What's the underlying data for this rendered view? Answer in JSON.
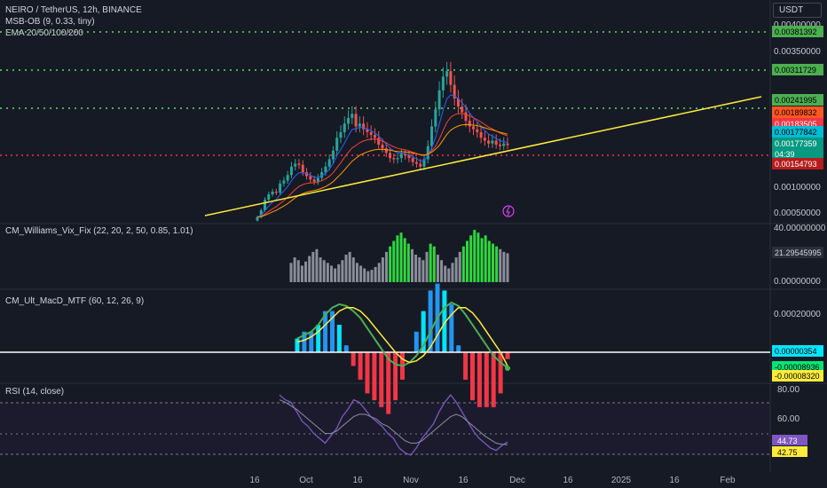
{
  "header": {
    "symbol": "NEIRO / TetherUS, 12h, BINANCE",
    "indicator1": "MSB-OB (9, 0.33, tiny)",
    "indicator2": "EMA 20/50/100/200",
    "currency": "USDT"
  },
  "colors": {
    "background": "#161a25",
    "green_dots": "#4caf50",
    "red_dots": "#f23645",
    "trendline": "#ffeb3b",
    "up_candle": "#26a69a",
    "down_candle": "#ef5350",
    "rsi_line": "#7e57c2",
    "macd_line_up": "#4caf50",
    "macd_line_down": "#f23645",
    "signal_line": "#ffeb3b"
  },
  "price_axis": {
    "ticks": [
      "0.00400000",
      "0.00350000",
      "0.00100000",
      "0.00050000"
    ],
    "badges": [
      {
        "text": "0.00381392",
        "bg": "#4caf50",
        "fg": "#000000"
      },
      {
        "text": "0.00311729",
        "bg": "#4caf50",
        "fg": "#000000"
      },
      {
        "text": "0.00241995",
        "bg": "#4caf50",
        "fg": "#000000"
      },
      {
        "text": "0.00189832",
        "bg": "#ff5722",
        "fg": "#000000"
      },
      {
        "text": "0.00183505",
        "bg": "#f23645",
        "fg": "#ffffff"
      },
      {
        "text": "0.00177842",
        "bg": "#00bcd4",
        "fg": "#000000"
      },
      {
        "text": "0.00177359",
        "bg": "#089981",
        "fg": "#ffffff"
      },
      {
        "text": "04:39",
        "bg": "#089981",
        "fg": "#ffffff"
      },
      {
        "text": "0.00154793",
        "bg": "#b71c1c",
        "fg": "#ffffff"
      }
    ],
    "levels": [
      0.00381392,
      0.00311729,
      0.00241995,
      0.00154793
    ]
  },
  "x_axis": {
    "labels": [
      "16",
      "Oct",
      "16",
      "Nov",
      "16",
      "Dec",
      "16",
      "2025",
      "16",
      "Feb"
    ]
  },
  "panes": {
    "vix": {
      "title": "CM_Williams_Vix_Fix (22, 20, 2, 50, 0.85, 1.01)",
      "ticks": [
        "40.00000000",
        "0.00000000"
      ],
      "badge": "21.29545995"
    },
    "macd": {
      "title": "CM_Ult_MacD_MTF (60, 12, 26, 9)",
      "ticks": [
        "0.00020000"
      ],
      "badges": [
        {
          "text": "0.00000354",
          "bg": "#00e5ff",
          "fg": "#000000"
        },
        {
          "text": "-0.00008936",
          "bg": "#00e676",
          "fg": "#000000"
        },
        {
          "text": "-0.00008320",
          "bg": "#ffeb3b",
          "fg": "#000000"
        }
      ]
    },
    "rsi": {
      "title": "RSI (14, close)",
      "ticks": [
        "80.00",
        "60.00"
      ],
      "badges": [
        {
          "text": "44.73",
          "bg": "#7e57c2",
          "fg": "#ffffff"
        },
        {
          "text": "42.75",
          "bg": "#ffeb3b",
          "fg": "#000000"
        }
      ]
    }
  },
  "chart_data": [
    {
      "type": "candlestick",
      "title": "NEIRO / TetherUS, 12h, BINANCE",
      "x_range": [
        "2024-09-16",
        "2024-11-27"
      ],
      "close": [
        0.00042,
        0.00055,
        0.00075,
        0.00085,
        0.0009,
        0.00088,
        0.00105,
        0.0011,
        0.0012,
        0.00135,
        0.0014,
        0.00138,
        0.00125,
        0.00118,
        0.00112,
        0.00108,
        0.00115,
        0.00125,
        0.00135,
        0.00148,
        0.00165,
        0.0019,
        0.002,
        0.00215,
        0.00225,
        0.00232,
        0.0021,
        0.00215,
        0.00205,
        0.002,
        0.00195,
        0.0019,
        0.00178,
        0.0017,
        0.0016,
        0.0015,
        0.00148,
        0.0015,
        0.00158,
        0.00155,
        0.0015,
        0.00143,
        0.0014,
        0.00135,
        0.00148,
        0.00175,
        0.0021,
        0.0024,
        0.00275,
        0.003,
        0.0031,
        0.00285,
        0.0026,
        0.00245,
        0.00235,
        0.0022,
        0.0021,
        0.00205,
        0.002,
        0.0019,
        0.00185,
        0.0018,
        0.00185,
        0.00178,
        0.00175,
        0.0018,
        0.00177
      ],
      "trendline": {
        "start": [
          "2024-09-16",
          0.0004
        ],
        "end": [
          "2025-02-05",
          0.0027
        ]
      },
      "horizontal_levels": [
        0.00381392,
        0.00311729,
        0.00241995,
        0.00154793
      ]
    },
    {
      "type": "bar",
      "title": "CM_Williams_Vix_Fix (22, 20, 2, 50, 0.85, 1.01)",
      "ylim": [
        0,
        40
      ],
      "values": [
        14,
        18,
        16,
        12,
        15,
        19,
        22,
        24,
        18,
        16,
        14,
        12,
        10,
        13,
        16,
        20,
        22,
        18,
        14,
        12,
        10,
        8,
        9,
        11,
        14,
        18,
        22,
        26,
        30,
        34,
        36,
        32,
        28,
        24,
        20,
        18,
        16,
        22,
        28,
        26,
        20,
        16,
        12,
        10,
        14,
        18,
        22,
        26,
        30,
        34,
        38,
        36,
        32,
        34,
        30,
        28,
        26,
        24,
        22,
        21
      ]
    },
    {
      "type": "line",
      "title": "CM_Ult_MacD_MTF (60, 12, 26, 9)",
      "series": [
        {
          "values": [
            8e-05,
            0.0001,
            0.00012,
            0.00016,
            0.00022,
            0.00026,
            0.00028,
            0.00027,
            0.00024,
            0.0002,
            0.00014,
            8e-05,
            2e-05,
            -4e-05,
            -7e-05,
            -8e-05,
            -6e-05,
            -2e-05,
            4e-05,
            0.00012,
            0.0002,
            0.00026,
            0.00029,
            0.00027,
            0.00022,
            0.00016,
            0.0001,
            4e-05,
            -2e-05,
            -6e-05,
            -9e-05
          ]
        },
        {
          "values": [
            6e-05,
            7e-05,
            9e-05,
            0.00012,
            0.00016,
            0.0002,
            0.00024,
            0.00026,
            0.00026,
            0.00024,
            0.0002,
            0.00015,
            0.0001,
            5e-05,
            0.0,
            -4e-05,
            -6e-05,
            -5e-05,
            -2e-05,
            3e-05,
            0.0001,
            0.00017,
            0.00022,
            0.00026,
            0.00026,
            0.00023,
            0.00018,
            0.00012,
            6e-05,
            0.0,
            -8e-05
          ]
        }
      ]
    },
    {
      "type": "line",
      "title": "RSI (14, close)",
      "ylim": [
        20,
        90
      ],
      "series": [
        {
          "values": [
            84,
            80,
            78,
            70,
            62,
            58,
            52,
            48,
            44,
            50,
            56,
            66,
            72,
            80,
            78,
            72,
            66,
            62,
            58,
            52,
            48,
            40,
            36,
            34,
            40,
            48,
            54,
            60,
            70,
            78,
            84,
            78,
            70,
            62,
            54,
            48,
            44,
            40,
            38,
            42,
            45
          ]
        },
        {
          "values": [
            80,
            78,
            75,
            72,
            68,
            64,
            60,
            56,
            52,
            52,
            54,
            58,
            62,
            66,
            68,
            68,
            66,
            64,
            60,
            58,
            54,
            50,
            46,
            44,
            44,
            46,
            50,
            54,
            58,
            62,
            66,
            68,
            66,
            62,
            58,
            54,
            50,
            47,
            44,
            43,
            42.75
          ]
        }
      ]
    }
  ]
}
